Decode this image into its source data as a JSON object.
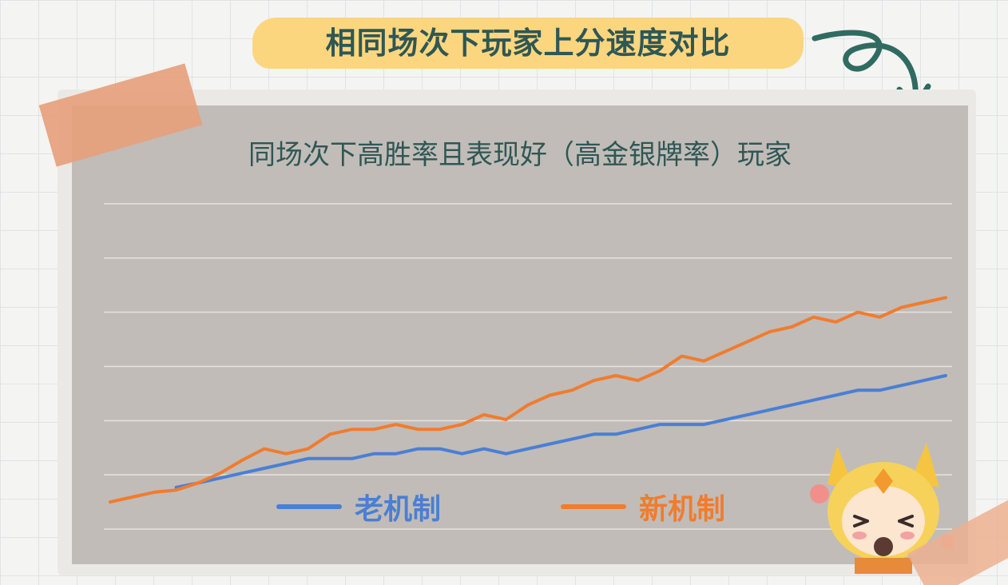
{
  "header": {
    "title": "相同场次下玩家上分速度对比"
  },
  "chart_data": {
    "type": "line",
    "title": "同场次下高胜率且表现好（高金银牌率）玩家",
    "xlabel": "",
    "ylabel": "",
    "ylim": [
      0,
      6
    ],
    "grid": true,
    "legend_position": "bottom",
    "x": [
      0,
      1,
      2,
      3,
      4,
      5,
      6,
      7,
      8,
      9,
      10,
      11,
      12,
      13,
      14,
      15,
      16,
      17,
      18,
      19,
      20,
      21,
      22,
      23,
      24,
      25,
      26,
      27,
      28,
      29,
      30,
      31,
      32,
      33,
      34,
      35,
      36,
      37,
      38
    ],
    "series": [
      {
        "name": "老机制",
        "color": "#4a7fd4",
        "values": [
          null,
          null,
          null,
          0.77,
          0.85,
          0.94,
          1.03,
          1.12,
          1.21,
          1.3,
          1.3,
          1.3,
          1.39,
          1.39,
          1.48,
          1.48,
          1.39,
          1.48,
          1.39,
          1.48,
          1.57,
          1.66,
          1.75,
          1.75,
          1.84,
          1.93,
          1.93,
          1.93,
          2.02,
          2.11,
          2.2,
          2.29,
          2.38,
          2.47,
          2.56,
          2.56,
          2.65,
          2.74,
          2.83
        ]
      },
      {
        "name": "新机制",
        "color": "#f07c2e",
        "values": [
          0.5,
          0.59,
          0.68,
          0.72,
          0.85,
          1.03,
          1.27,
          1.48,
          1.39,
          1.48,
          1.75,
          1.84,
          1.84,
          1.93,
          1.84,
          1.84,
          1.93,
          2.11,
          2.02,
          2.29,
          2.47,
          2.56,
          2.74,
          2.83,
          2.74,
          2.92,
          3.19,
          3.1,
          3.28,
          3.46,
          3.64,
          3.73,
          3.91,
          3.82,
          4.0,
          3.91,
          4.09,
          4.18,
          4.27
        ]
      }
    ]
  },
  "legend": [
    {
      "label": "老机制",
      "color": "#4a7fd4"
    },
    {
      "label": "新机制",
      "color": "#f07c2e"
    }
  ],
  "decorations": {
    "arrow_icon": "curly-arrow-icon",
    "mascot_icon": "chibi-fox-girl-mascot",
    "tape_color": "#e79e7a",
    "banner_color": "#fbd67f",
    "title_color": "#2f5754"
  }
}
